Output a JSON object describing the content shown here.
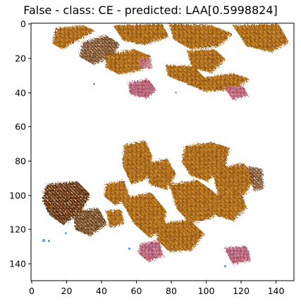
{
  "figure": {
    "title": "False - class: CE - predicted: LAA[0.5998824]"
  },
  "axes": {
    "x_range": [
      0,
      150
    ],
    "y_range": [
      0,
      150
    ],
    "y_inverted": true,
    "x_ticks": [
      "0",
      "20",
      "40",
      "60",
      "80",
      "100",
      "120",
      "140"
    ],
    "y_ticks": [
      "0",
      "20",
      "40",
      "60",
      "80",
      "100",
      "120",
      "140"
    ]
  },
  "image": {
    "description_colors": {
      "background": "#ffffff",
      "tissue_brown": "#b5731f",
      "tissue_dark": "#6b3a12",
      "tissue_pink": "#c06a7a",
      "speck_blue": "#6aa0e0"
    }
  }
}
